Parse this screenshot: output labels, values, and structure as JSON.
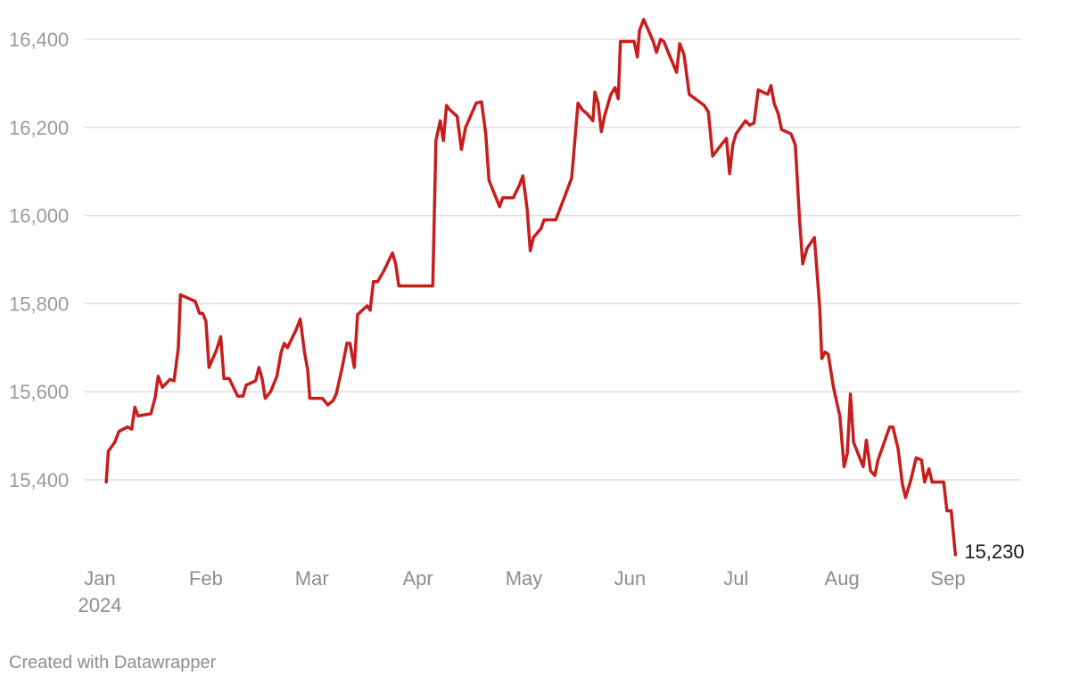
{
  "chart_data": {
    "type": "line",
    "ylim": [
      15230,
      16450
    ],
    "yticks": [
      15400,
      15600,
      15800,
      16000,
      16200,
      16400
    ],
    "ytick_labels": [
      "15,400",
      "15,600",
      "15,800",
      "16,000",
      "16,200",
      "16,400"
    ],
    "xlim": [
      1.5,
      19.3
    ],
    "xticks": [
      {
        "label": "Jan",
        "sublabel": "2024",
        "x": 1
      },
      {
        "label": "Feb",
        "x": 2
      },
      {
        "label": "Mar",
        "x": 3
      },
      {
        "label": "Apr",
        "x": 4
      },
      {
        "label": "May",
        "x": 5
      },
      {
        "label": "Jun",
        "x": 6
      },
      {
        "label": "Jul",
        "x": 7
      },
      {
        "label": "Aug",
        "x": 8
      },
      {
        "label": "Sep",
        "x": 9
      }
    ],
    "grid": true,
    "line_color": "#c71e1d",
    "end_label": "15,230",
    "series": [
      {
        "points": [
          [
            1.06,
            15395
          ],
          [
            1.08,
            15465
          ],
          [
            1.14,
            15485
          ],
          [
            1.18,
            15510
          ],
          [
            1.26,
            15520
          ],
          [
            1.3,
            15515
          ],
          [
            1.33,
            15565
          ],
          [
            1.36,
            15545
          ],
          [
            1.48,
            15550
          ],
          [
            1.52,
            15585
          ],
          [
            1.55,
            15635
          ],
          [
            1.59,
            15610
          ],
          [
            1.66,
            15628
          ],
          [
            1.7,
            15625
          ],
          [
            1.74,
            15700
          ],
          [
            1.76,
            15820
          ],
          [
            1.9,
            15805
          ],
          [
            1.94,
            15778
          ],
          [
            1.97,
            15778
          ],
          [
            2.0,
            15760
          ],
          [
            2.03,
            15655
          ],
          [
            2.1,
            15695
          ],
          [
            2.14,
            15725
          ],
          [
            2.17,
            15630
          ],
          [
            2.22,
            15630
          ],
          [
            2.3,
            15590
          ],
          [
            2.35,
            15590
          ],
          [
            2.38,
            15615
          ],
          [
            2.47,
            15625
          ],
          [
            2.5,
            15655
          ],
          [
            2.53,
            15630
          ],
          [
            2.56,
            15585
          ],
          [
            2.61,
            15600
          ],
          [
            2.67,
            15635
          ],
          [
            2.71,
            15690
          ],
          [
            2.74,
            15710
          ],
          [
            2.77,
            15700
          ],
          [
            2.85,
            15740
          ],
          [
            2.89,
            15765
          ],
          [
            2.93,
            15690
          ],
          [
            2.96,
            15650
          ],
          [
            2.98,
            15585
          ],
          [
            3.1,
            15585
          ],
          [
            3.15,
            15570
          ],
          [
            3.2,
            15580
          ],
          [
            3.23,
            15595
          ],
          [
            3.29,
            15660
          ],
          [
            3.33,
            15710
          ],
          [
            3.36,
            15710
          ],
          [
            3.4,
            15655
          ],
          [
            3.43,
            15775
          ],
          [
            3.52,
            15795
          ],
          [
            3.55,
            15785
          ],
          [
            3.58,
            15850
          ],
          [
            3.62,
            15850
          ],
          [
            3.68,
            15875
          ],
          [
            3.73,
            15900
          ],
          [
            3.76,
            15915
          ],
          [
            3.79,
            15890
          ],
          [
            3.82,
            15840
          ],
          [
            4.1,
            15840
          ],
          [
            4.14,
            15840
          ],
          [
            4.17,
            16170
          ],
          [
            4.21,
            16215
          ],
          [
            4.24,
            16170
          ],
          [
            4.27,
            16250
          ],
          [
            4.3,
            16240
          ],
          [
            4.37,
            16225
          ],
          [
            4.41,
            16150
          ],
          [
            4.45,
            16200
          ],
          [
            4.55,
            16255
          ],
          [
            4.6,
            16258
          ],
          [
            4.64,
            16185
          ],
          [
            4.67,
            16080
          ],
          [
            4.77,
            16020
          ],
          [
            4.8,
            16040
          ],
          [
            4.9,
            16040
          ],
          [
            4.96,
            16070
          ],
          [
            4.99,
            16090
          ],
          [
            5.03,
            16015
          ],
          [
            5.06,
            15920
          ],
          [
            5.09,
            15950
          ],
          [
            5.16,
            15970
          ],
          [
            5.19,
            15990
          ],
          [
            5.3,
            15990
          ],
          [
            5.38,
            16040
          ],
          [
            5.45,
            16085
          ],
          [
            5.48,
            16170
          ],
          [
            5.51,
            16255
          ],
          [
            5.55,
            16240
          ],
          [
            5.6,
            16230
          ],
          [
            5.65,
            16215
          ],
          [
            5.67,
            16280
          ],
          [
            5.7,
            16255
          ],
          [
            5.73,
            16190
          ],
          [
            5.76,
            16225
          ],
          [
            5.82,
            16275
          ],
          [
            5.86,
            16290
          ],
          [
            5.89,
            16265
          ],
          [
            5.91,
            16395
          ],
          [
            6.04,
            16395
          ],
          [
            6.07,
            16360
          ],
          [
            6.09,
            16420
          ],
          [
            6.13,
            16445
          ],
          [
            6.22,
            16395
          ],
          [
            6.25,
            16370
          ],
          [
            6.29,
            16400
          ],
          [
            6.32,
            16395
          ],
          [
            6.37,
            16365
          ],
          [
            6.44,
            16325
          ],
          [
            6.47,
            16390
          ],
          [
            6.51,
            16365
          ],
          [
            6.56,
            16275
          ],
          [
            6.7,
            16250
          ],
          [
            6.74,
            16235
          ],
          [
            6.78,
            16135
          ],
          [
            6.86,
            16160
          ],
          [
            6.91,
            16175
          ],
          [
            6.94,
            16095
          ],
          [
            6.97,
            16160
          ],
          [
            7.0,
            16185
          ],
          [
            7.09,
            16215
          ],
          [
            7.13,
            16205
          ],
          [
            7.17,
            16210
          ],
          [
            7.21,
            16285
          ],
          [
            7.3,
            16275
          ],
          [
            7.33,
            16295
          ],
          [
            7.36,
            16255
          ],
          [
            7.4,
            16230
          ],
          [
            7.43,
            16195
          ],
          [
            7.52,
            16185
          ],
          [
            7.56,
            16160
          ],
          [
            7.6,
            15990
          ],
          [
            7.63,
            15890
          ],
          [
            7.67,
            15925
          ],
          [
            7.74,
            15950
          ],
          [
            7.79,
            15790
          ],
          [
            7.81,
            15675
          ],
          [
            7.84,
            15690
          ],
          [
            7.87,
            15685
          ],
          [
            7.92,
            15610
          ],
          [
            7.98,
            15545
          ],
          [
            8.02,
            15430
          ],
          [
            8.05,
            15460
          ],
          [
            8.08,
            15595
          ],
          [
            8.11,
            15485
          ],
          [
            8.2,
            15430
          ],
          [
            8.23,
            15490
          ],
          [
            8.27,
            15420
          ],
          [
            8.31,
            15410
          ],
          [
            8.34,
            15445
          ],
          [
            8.42,
            15500
          ],
          [
            8.45,
            15520
          ],
          [
            8.48,
            15520
          ],
          [
            8.53,
            15470
          ],
          [
            8.57,
            15390
          ],
          [
            8.6,
            15360
          ],
          [
            8.65,
            15400
          ],
          [
            8.7,
            15450
          ],
          [
            8.75,
            15445
          ],
          [
            8.78,
            15395
          ],
          [
            8.82,
            15425
          ],
          [
            8.85,
            15395
          ],
          [
            8.96,
            15395
          ],
          [
            8.99,
            15330
          ],
          [
            9.03,
            15330
          ],
          [
            9.07,
            15230
          ]
        ]
      }
    ]
  },
  "footer": {
    "credit": "Created with Datawrapper"
  }
}
